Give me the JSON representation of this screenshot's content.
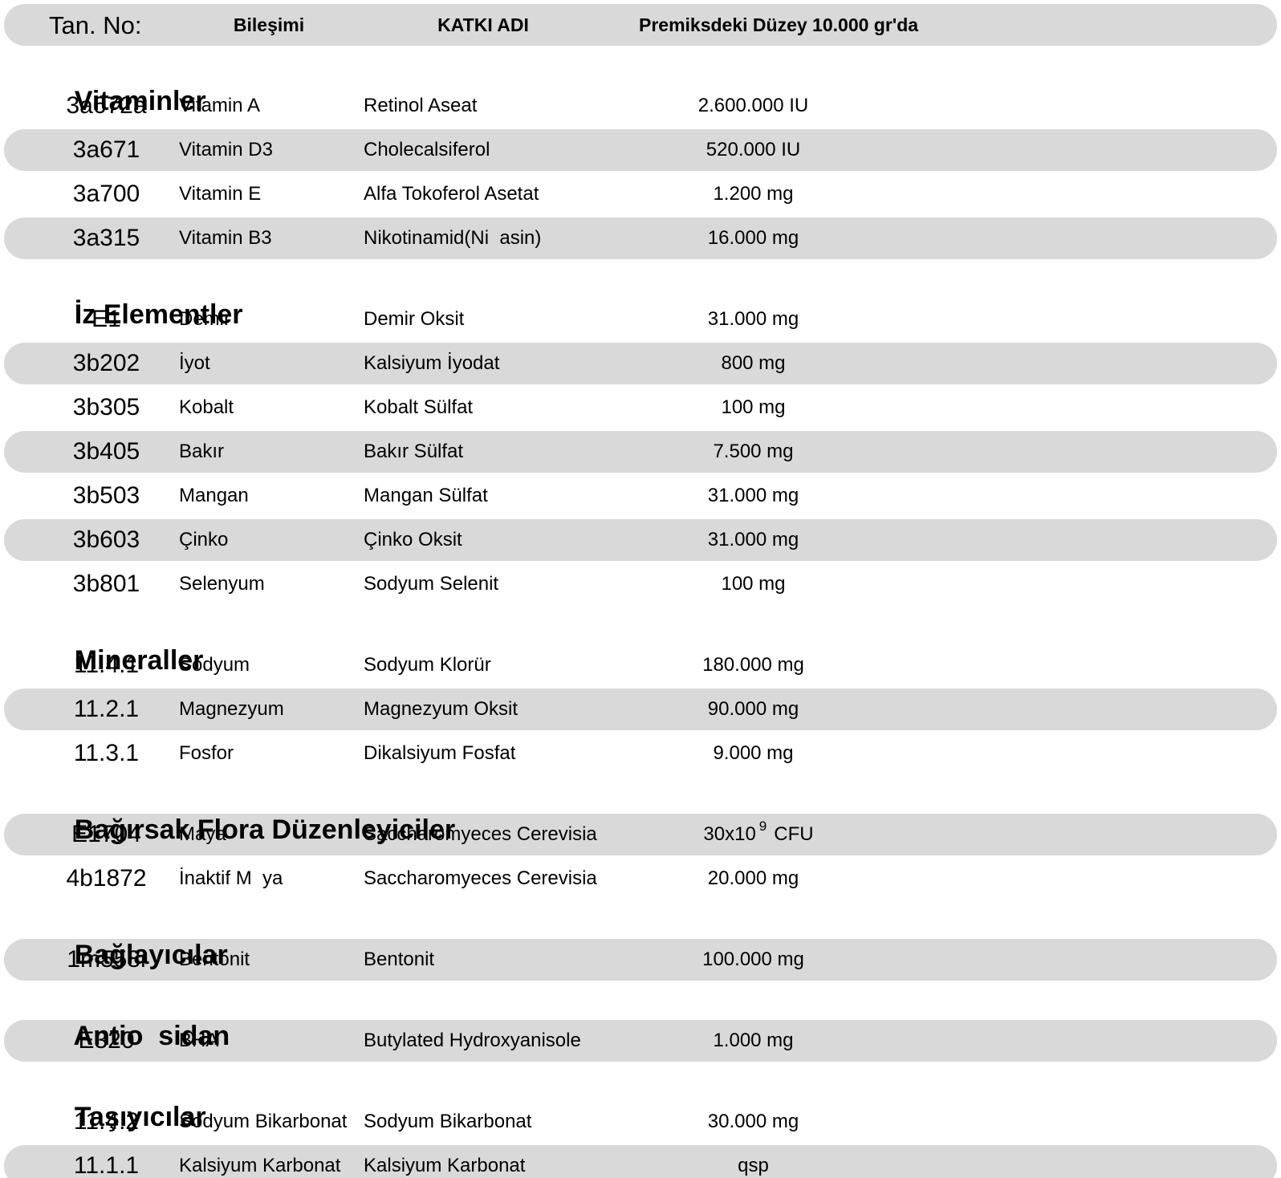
{
  "colors": {
    "row_shade": "#d9d9d9",
    "background": "#ffffff",
    "text": "#000000"
  },
  "header": {
    "tan_no": "Tan. No:",
    "bilesimi": "Bileşimi",
    "katki_adi": "KATKI ADI",
    "duzey": "Premiksdeki Düzey 10.000 gr'da"
  },
  "rows": [
    {
      "type": "section",
      "label": "Vitaminler"
    },
    {
      "type": "data",
      "shaded": false,
      "tan_no": "3a672a",
      "bilesim": "Vitamin A",
      "katki": "Retinol Aseat",
      "duzey": "2.600.000 IU"
    },
    {
      "type": "data",
      "shaded": true,
      "tan_no": "3a671",
      "bilesim": "Vitamin D3",
      "katki": "Cholecalsiferol",
      "duzey": "520.000 IU"
    },
    {
      "type": "data",
      "shaded": false,
      "tan_no": "3a700",
      "bilesim": "Vitamin E",
      "katki": "Alfa Tokoferol Asetat",
      "duzey": "1.200 mg"
    },
    {
      "type": "data",
      "shaded": true,
      "tan_no": "3a315",
      "bilesim": "Vitamin B3",
      "katki": "Nikotinamid(Ni  asin)",
      "duzey": "16.000 mg"
    },
    {
      "type": "section",
      "label": "İz Elementler"
    },
    {
      "type": "data",
      "shaded": false,
      "tan_no": "E1",
      "bilesim": "Demir",
      "katki": "Demir Oksit",
      "duzey": "31.000 mg"
    },
    {
      "type": "data",
      "shaded": true,
      "tan_no": "3b202",
      "bilesim": "İyot",
      "katki": "Kalsiyum İyodat",
      "duzey": "800 mg"
    },
    {
      "type": "data",
      "shaded": false,
      "tan_no": "3b305",
      "bilesim": "Kobalt",
      "katki": "Kobalt Sülfat",
      "duzey": "100 mg"
    },
    {
      "type": "data",
      "shaded": true,
      "tan_no": "3b405",
      "bilesim": "Bakır",
      "katki": "Bakır Sülfat",
      "duzey": "7.500 mg"
    },
    {
      "type": "data",
      "shaded": false,
      "tan_no": "3b503",
      "bilesim": "Mangan",
      "katki": "Mangan Sülfat",
      "duzey": "31.000 mg"
    },
    {
      "type": "data",
      "shaded": true,
      "tan_no": "3b603",
      "bilesim": "Çinko",
      "katki": "Çinko Oksit",
      "duzey": "31.000 mg"
    },
    {
      "type": "data",
      "shaded": false,
      "tan_no": "3b801",
      "bilesim": "Selenyum",
      "katki": "Sodyum Selenit",
      "duzey": "100 mg"
    },
    {
      "type": "section",
      "label": "Mineraller"
    },
    {
      "type": "data",
      "shaded": false,
      "tan_no": "11.4.1",
      "bilesim": "Sodyum",
      "katki": "Sodyum Klorür",
      "duzey": "180.000 mg"
    },
    {
      "type": "data",
      "shaded": true,
      "tan_no": "11.2.1",
      "bilesim": "Magnezyum",
      "katki": "Magnezyum Oksit",
      "duzey": "90.000 mg"
    },
    {
      "type": "data",
      "shaded": false,
      "tan_no": "11.3.1",
      "bilesim": "Fosfor",
      "katki": "Dikalsiyum Fosfat",
      "duzey": "9.000 mg"
    },
    {
      "type": "section",
      "label": "Bağırsak Flora Düzenleyiciler"
    },
    {
      "type": "data",
      "shaded": true,
      "tan_no": "E1704",
      "bilesim": "Maya",
      "katki": "Saccharomyeces Cerevisia",
      "duzey": "30x10",
      "duzey_sup": "9",
      "duzey_unit": "CFU"
    },
    {
      "type": "data",
      "shaded": false,
      "tan_no": "4b1872",
      "bilesim": "İnaktif M  ya",
      "katki": "Saccharomyeces Cerevisia",
      "duzey": "20.000 mg"
    },
    {
      "type": "section",
      "label": "Bağlayıcılar"
    },
    {
      "type": "data",
      "shaded": true,
      "tan_no": "1m558i",
      "bilesim": "Bentonit",
      "katki": "Bentonit",
      "duzey": "100.000 mg"
    },
    {
      "type": "section",
      "label": "Antio  sidan"
    },
    {
      "type": "data",
      "shaded": true,
      "tan_no": "E320",
      "bilesim": "BHA",
      "katki": "Butylated Hydroxyanisole",
      "duzey": "1.000 mg"
    },
    {
      "type": "section",
      "label": "Taşıyıcılar"
    },
    {
      "type": "data",
      "shaded": false,
      "tan_no": "11.4.2",
      "bilesim": "Sodyum Bikarbonat",
      "katki": "Sodyum Bikarbonat",
      "duzey": "30.000 mg"
    },
    {
      "type": "data",
      "shaded": true,
      "tan_no": "11.1.1",
      "bilesim": "Kalsiyum Karbonat",
      "katki": "Kalsiyum Karbonat",
      "duzey": "qsp"
    }
  ]
}
